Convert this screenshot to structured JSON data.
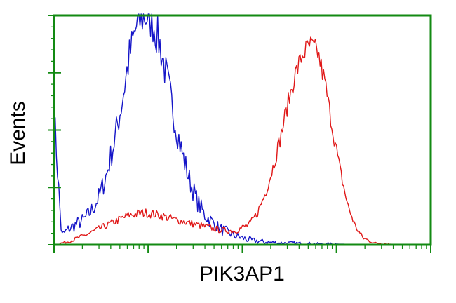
{
  "chart_data": {
    "type": "line",
    "xlabel": "PIK3AP1",
    "ylabel": "Events",
    "xlim": [
      0,
      1
    ],
    "ylim": [
      0,
      1
    ],
    "x_scale": "log",
    "x_decades": 4,
    "grid": false,
    "legend": "none",
    "colors": {
      "frame": "#138a13",
      "blue": "#1515c8",
      "red": "#e01818"
    },
    "series": [
      {
        "color": "#1515c8",
        "peak_x": 0.245,
        "peak_height": 1.0,
        "x": [
          0.0,
          0.02,
          0.04,
          0.06,
          0.08,
          0.1,
          0.12,
          0.14,
          0.16,
          0.18,
          0.2,
          0.22,
          0.24,
          0.26,
          0.28,
          0.3,
          0.32,
          0.34,
          0.36,
          0.38,
          0.4,
          0.44,
          0.48,
          0.52,
          0.56,
          0.6,
          0.65,
          0.7,
          0.8,
          1.0
        ],
        "y": [
          0.58,
          0.04,
          0.07,
          0.09,
          0.11,
          0.15,
          0.21,
          0.31,
          0.45,
          0.62,
          0.82,
          0.96,
          1.0,
          0.98,
          0.88,
          0.72,
          0.55,
          0.4,
          0.28,
          0.19,
          0.13,
          0.07,
          0.04,
          0.02,
          0.012,
          0.008,
          0.006,
          0.004,
          0.002,
          0.0
        ]
      },
      {
        "color": "#e01818",
        "peak_x": 0.675,
        "peak_height": 0.87,
        "x": [
          0.0,
          0.04,
          0.08,
          0.12,
          0.16,
          0.2,
          0.24,
          0.28,
          0.32,
          0.36,
          0.4,
          0.44,
          0.48,
          0.52,
          0.54,
          0.56,
          0.58,
          0.6,
          0.62,
          0.64,
          0.66,
          0.68,
          0.7,
          0.72,
          0.74,
          0.76,
          0.78,
          0.8,
          0.82,
          0.85,
          0.9,
          1.0
        ],
        "y": [
          0.0,
          0.015,
          0.04,
          0.07,
          0.1,
          0.13,
          0.14,
          0.13,
          0.11,
          0.095,
          0.08,
          0.065,
          0.06,
          0.09,
          0.14,
          0.22,
          0.33,
          0.46,
          0.61,
          0.74,
          0.83,
          0.87,
          0.84,
          0.7,
          0.5,
          0.32,
          0.17,
          0.08,
          0.03,
          0.008,
          0.002,
          0.0
        ]
      }
    ]
  }
}
